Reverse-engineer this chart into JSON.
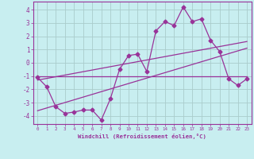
{
  "xlabel": "Windchill (Refroidissement éolien,°C)",
  "xlim": [
    -0.5,
    23.5
  ],
  "ylim": [
    -4.6,
    4.6
  ],
  "yticks": [
    -4,
    -3,
    -2,
    -1,
    0,
    1,
    2,
    3,
    4
  ],
  "xticks": [
    0,
    1,
    2,
    3,
    4,
    5,
    6,
    7,
    8,
    9,
    10,
    11,
    12,
    13,
    14,
    15,
    16,
    17,
    18,
    19,
    20,
    21,
    22,
    23
  ],
  "bg_color": "#c8eef0",
  "grid_color": "#aacccc",
  "line_color": "#993399",
  "line1_x": [
    0,
    1,
    2,
    3,
    4,
    5,
    6,
    7,
    8,
    9,
    10,
    11,
    12,
    13,
    14,
    15,
    16,
    17,
    18,
    19,
    20,
    21,
    22,
    23
  ],
  "line1_y": [
    -1.1,
    -1.8,
    -3.3,
    -3.8,
    -3.7,
    -3.55,
    -3.55,
    -4.3,
    -2.7,
    -0.5,
    0.55,
    0.65,
    -0.65,
    2.4,
    3.1,
    2.8,
    4.2,
    3.1,
    3.3,
    1.7,
    0.85,
    -1.2,
    -1.7,
    -1.2
  ],
  "line2_x": [
    0,
    23
  ],
  "line2_y": [
    -1.3,
    1.6
  ],
  "line3_x": [
    0,
    23
  ],
  "line3_y": [
    -1.0,
    -1.0
  ],
  "line4_x": [
    0,
    23
  ],
  "line4_y": [
    -3.6,
    1.1
  ]
}
